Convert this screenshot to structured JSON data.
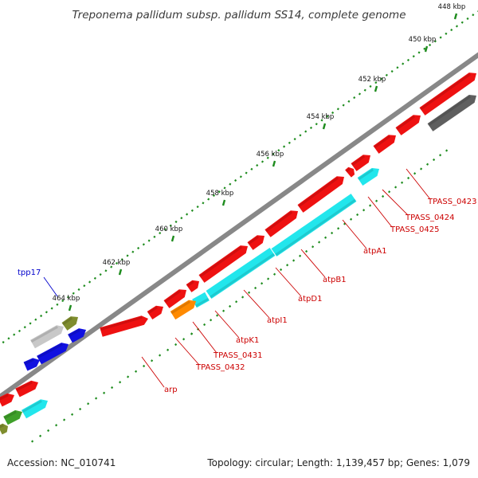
{
  "title": "Treponema pallidum subsp. pallidum SS14, complete genome",
  "footer": {
    "accession": "Accession: NC_010741",
    "summary": "Topology: circular; Length: 1,139,457 bp; Genes: 1,079"
  },
  "ticks": [
    "448 kbp",
    "450 kbp",
    "452 kbp",
    "454 kbp",
    "456 kbp",
    "458 kbp",
    "460 kbp",
    "462 kbp",
    "464 kbp"
  ],
  "gene_labels": {
    "blue": [
      "tpp17"
    ],
    "red": [
      "TPASS_0423",
      "TPASS_0424",
      "TPASS_0425",
      "atpA1",
      "atpB1",
      "atpD1",
      "atpI1",
      "atpK1",
      "TPASS_0431",
      "TPASS_0432",
      "arp"
    ]
  },
  "colors": {
    "backbone": "#888888",
    "forward_gene": "#ee1111",
    "reverse_gene": "#22e6ec",
    "dark_gene": "#5f5f5f",
    "light_gene": "#c8c8c8",
    "blue_gene": "#1010e0",
    "green_gene": "#3fa02a",
    "olive_gene": "#7f8d2e",
    "orange_gene": "#ff8a00",
    "tick": "#1e8c1e",
    "label_red": "#cc0000",
    "label_blue": "#0000cc"
  }
}
